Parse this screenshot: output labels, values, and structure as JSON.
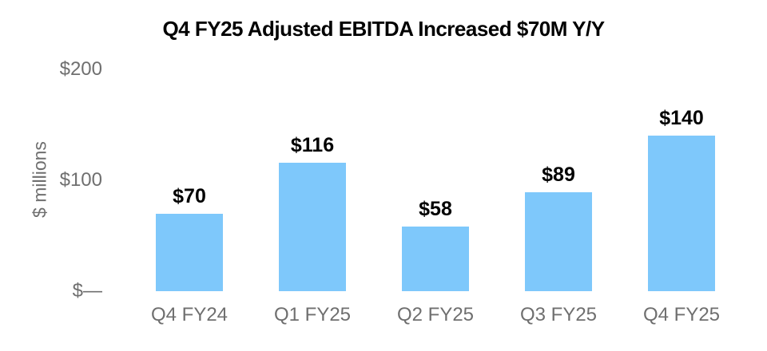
{
  "figure": {
    "background_color": "#ffffff"
  },
  "chart_data": {
    "type": "bar",
    "title": "Q4 FY25 Adjusted EBITDA Increased $70M Y/Y",
    "categories": [
      "Q4 FY24",
      "Q1 FY25",
      "Q2 FY25",
      "Q3 FY25",
      "Q4 FY25"
    ],
    "values": [
      70,
      116,
      58,
      89,
      140
    ],
    "value_labels": [
      "$70",
      "$116",
      "$58",
      "$89",
      "$140"
    ],
    "xlabel": "",
    "ylabel": "$ millions",
    "ylim": [
      0,
      200
    ],
    "yticks": [
      {
        "value": 200,
        "label": "$200"
      },
      {
        "value": 100,
        "label": "$100"
      },
      {
        "value": 0,
        "label": "$—"
      }
    ],
    "grid": false,
    "legend_position": "none",
    "bar_color": "#7ec8fb",
    "value_label_color": "#000000",
    "axis_text_color": "#6f6f6f"
  }
}
